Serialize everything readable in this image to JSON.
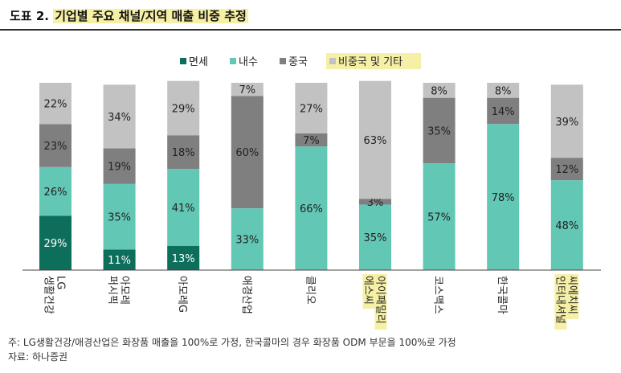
{
  "header": {
    "prefix": "도표 2.",
    "title": "기업별 주요 채널/지역 매출 비중 추정"
  },
  "footer": {
    "note": "주: LG생활건강/애경산업은 화장품 매출을 100%로 가정, 한국콜마의 경우 화장품 ODM 부문을 100%로 가정",
    "source": "자료: 하나증권"
  },
  "chart_data": {
    "type": "bar",
    "stacked": true,
    "percent": true,
    "categories": [
      "LG\n생활건강",
      "아모레\n퍼시픽",
      "아모레G",
      "애경산업",
      "클리오",
      "아이패밀리\n에스씨",
      "코스맥스",
      "한국콜마",
      "씨에치씨\n인터내셔널"
    ],
    "highlight_categories": [
      5,
      8
    ],
    "series": [
      {
        "name": "면세",
        "color": "#0e6e5c",
        "values": [
          29,
          11,
          13,
          0,
          0,
          0,
          0,
          0,
          0
        ]
      },
      {
        "name": "내수",
        "color": "#63c7b6",
        "values": [
          26,
          35,
          41,
          33,
          66,
          35,
          57,
          78,
          48
        ]
      },
      {
        "name": "중국",
        "color": "#7f7f7f",
        "values": [
          23,
          19,
          18,
          60,
          7,
          3,
          35,
          14,
          12
        ]
      },
      {
        "name": "비중국 및 기타",
        "color": "#c2c2c2",
        "values": [
          22,
          34,
          29,
          7,
          27,
          63,
          8,
          8,
          39
        ],
        "highlight": true
      }
    ],
    "ylim": [
      0,
      100
    ],
    "legend": "top-center",
    "grid": false
  }
}
